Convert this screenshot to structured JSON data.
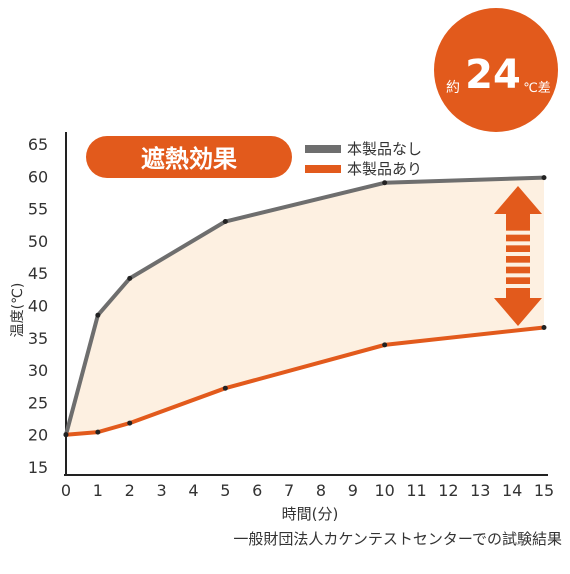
{
  "badge": {
    "prefix": "約",
    "value": "24",
    "unit": "℃差",
    "color": "#E25A1C"
  },
  "heat_label": {
    "text": "遮熱効果",
    "color": "#E25A1C"
  },
  "source_note": "一般財団法人カケンテストセンターでの試験結果",
  "colors": {
    "without": "#6E6E6E",
    "with": "#E25A1C",
    "fill": "#FDF0E1",
    "arrow": "#E25A1C"
  },
  "chart_data": {
    "type": "line",
    "title": "遮熱効果",
    "xlabel": "時間(分)",
    "ylabel": "温度(℃)",
    "xlim": [
      0,
      15
    ],
    "ylim": [
      15,
      65
    ],
    "xticks": [
      "0",
      "1",
      "2",
      "3",
      "4",
      "5",
      "6",
      "7",
      "8",
      "9",
      "10",
      "11",
      "12",
      "13",
      "14",
      "15"
    ],
    "yticks": [
      "15",
      "20",
      "25",
      "30",
      "35",
      "40",
      "45",
      "50",
      "55",
      "60",
      "65"
    ],
    "grid": false,
    "legend_position": "top-center",
    "series": [
      {
        "name": "本製品なし",
        "x": [
          0,
          1,
          2,
          5,
          10,
          15
        ],
        "y": [
          20,
          38.5,
          44.2,
          53,
          59,
          59.8
        ]
      },
      {
        "name": "本製品あり",
        "x": [
          0,
          1,
          2,
          5,
          10,
          15
        ],
        "y": [
          20,
          20.4,
          21.8,
          27.2,
          33.9,
          36.6
        ]
      }
    ]
  }
}
